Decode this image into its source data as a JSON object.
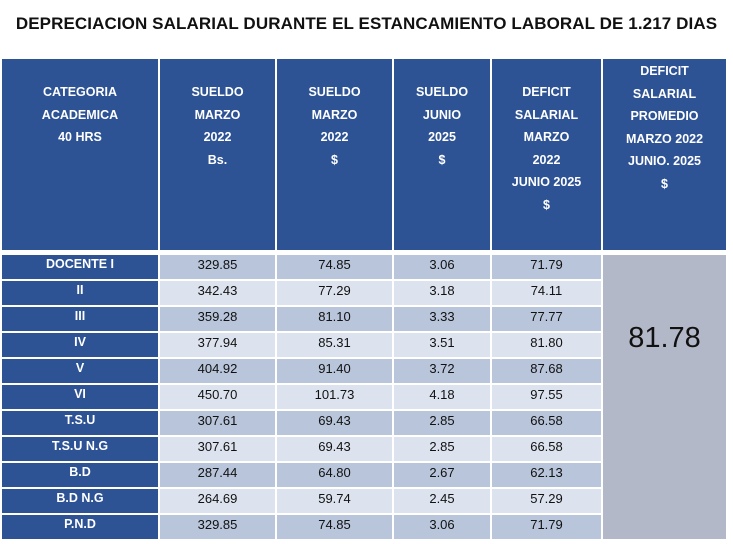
{
  "title": "DEPRECIACION SALARIAL DURANTE EL ESTANCAMIENTO  LABORAL DE 1.217 DIAS",
  "headers": [
    "CATEGORIA\nACADEMICA\n40 HRS",
    "SUELDO\nMARZO\n2022\nBs.",
    "SUELDO\nMARZO\n2022\n$",
    "SUELDO\nJUNIO\n2025\n$",
    "DEFICIT\nSALARIAL\nMARZO\n2022\nJUNIO   2025\n$",
    "DEFICIT\nSALARIAL\nPROMEDIO\nMARZO 2022\nJUNIO. 2025\n$"
  ],
  "rows": [
    {
      "category": "DOCENTE  I",
      "bs_2022": "329.85",
      "usd_2022": "74.85",
      "usd_2025": "3.06",
      "deficit": "71.79"
    },
    {
      "category": "II",
      "bs_2022": "342.43",
      "usd_2022": "77.29",
      "usd_2025": "3.18",
      "deficit": "74.11"
    },
    {
      "category": "III",
      "bs_2022": "359.28",
      "usd_2022": "81.10",
      "usd_2025": "3.33",
      "deficit": "77.77"
    },
    {
      "category": "IV",
      "bs_2022": "377.94",
      "usd_2022": "85.31",
      "usd_2025": "3.51",
      "deficit": "81.80"
    },
    {
      "category": "V",
      "bs_2022": "404.92",
      "usd_2022": "91.40",
      "usd_2025": "3.72",
      "deficit": "87.68"
    },
    {
      "category": "VI",
      "bs_2022": "450.70",
      "usd_2022": "101.73",
      "usd_2025": "4.18",
      "deficit": "97.55"
    },
    {
      "category": "T.S.U",
      "bs_2022": "307.61",
      "usd_2022": "69.43",
      "usd_2025": "2.85",
      "deficit": "66.58"
    },
    {
      "category": "T.S.U N.G",
      "bs_2022": "307.61",
      "usd_2022": "69.43",
      "usd_2025": "2.85",
      "deficit": "66.58"
    },
    {
      "category": "B.D",
      "bs_2022": "287.44",
      "usd_2022": "64.80",
      "usd_2025": "2.67",
      "deficit": "62.13"
    },
    {
      "category": "B.D N.G",
      "bs_2022": "264.69",
      "usd_2022": "59.74",
      "usd_2025": "2.45",
      "deficit": "57.29"
    },
    {
      "category": "P.N.D",
      "bs_2022": "329.85",
      "usd_2022": "74.85",
      "usd_2025": "3.06",
      "deficit": "71.79"
    }
  ],
  "average_deficit": "81.78",
  "colors": {
    "header_blue": "#2e5395",
    "row_dark": "#b8c5da",
    "row_light": "#dde3ee",
    "average_cell": "#b3b8c8"
  }
}
